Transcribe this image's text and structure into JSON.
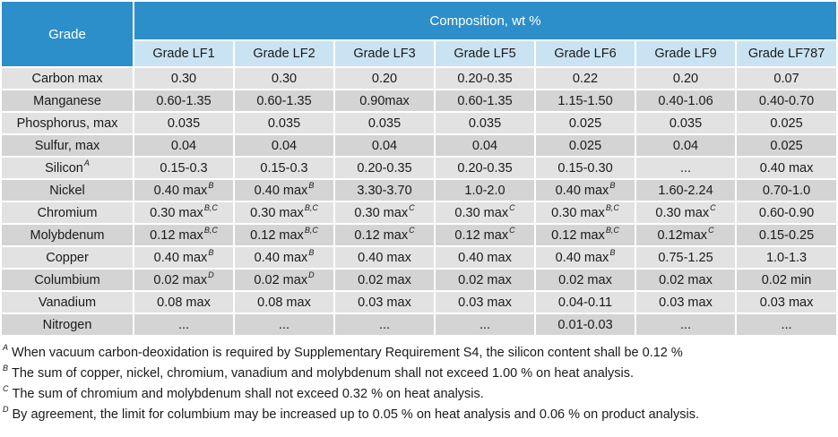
{
  "header": {
    "grade_label": "Grade",
    "composition_label": "Composition, wt %",
    "grades": [
      "Grade LF1",
      "Grade LF2",
      "Grade LF3",
      "Grade LF5",
      "Grade LF6",
      "Grade LF9",
      "Grade LF787"
    ]
  },
  "rows": [
    {
      "element": "Carbon max",
      "sup": "",
      "values": [
        {
          "v": "0.30",
          "s": ""
        },
        {
          "v": "0.30",
          "s": ""
        },
        {
          "v": "0.20",
          "s": ""
        },
        {
          "v": "0.20-0.35",
          "s": ""
        },
        {
          "v": "0.22",
          "s": ""
        },
        {
          "v": "0.20",
          "s": ""
        },
        {
          "v": "0.07",
          "s": ""
        }
      ]
    },
    {
      "element": "Manganese",
      "sup": "",
      "values": [
        {
          "v": "0.60-1.35",
          "s": ""
        },
        {
          "v": "0.60-1.35",
          "s": ""
        },
        {
          "v": "0.90max",
          "s": ""
        },
        {
          "v": "0.60-1.35",
          "s": ""
        },
        {
          "v": "1.15-1.50",
          "s": ""
        },
        {
          "v": "0.40-1.06",
          "s": ""
        },
        {
          "v": "0.40-0.70",
          "s": ""
        }
      ]
    },
    {
      "element": "Phosphorus, max",
      "sup": "",
      "values": [
        {
          "v": "0.035",
          "s": ""
        },
        {
          "v": "0.035",
          "s": ""
        },
        {
          "v": "0.035",
          "s": ""
        },
        {
          "v": "0.035",
          "s": ""
        },
        {
          "v": "0.025",
          "s": ""
        },
        {
          "v": "0.035",
          "s": ""
        },
        {
          "v": "0.025",
          "s": ""
        }
      ]
    },
    {
      "element": "Sulfur, max",
      "sup": "",
      "values": [
        {
          "v": "0.04",
          "s": ""
        },
        {
          "v": "0.04",
          "s": ""
        },
        {
          "v": "0.04",
          "s": ""
        },
        {
          "v": "0.04",
          "s": ""
        },
        {
          "v": "0.025",
          "s": ""
        },
        {
          "v": "0.04",
          "s": ""
        },
        {
          "v": "0.025",
          "s": ""
        }
      ]
    },
    {
      "element": "Silicon",
      "sup": "A",
      "values": [
        {
          "v": "0.15-0.3",
          "s": ""
        },
        {
          "v": "0.15-0.3",
          "s": ""
        },
        {
          "v": "0.20-0.35",
          "s": ""
        },
        {
          "v": "0.20-0.35",
          "s": ""
        },
        {
          "v": "0.15-0.30",
          "s": ""
        },
        {
          "v": "...",
          "s": ""
        },
        {
          "v": "0.40 max",
          "s": ""
        }
      ]
    },
    {
      "element": "Nickel",
      "sup": "",
      "values": [
        {
          "v": "0.40 max",
          "s": "B"
        },
        {
          "v": "0.40 max",
          "s": "B"
        },
        {
          "v": "3.30-3.70",
          "s": ""
        },
        {
          "v": "1.0-2.0",
          "s": ""
        },
        {
          "v": "0.40 max",
          "s": "B"
        },
        {
          "v": "1.60-2.24",
          "s": ""
        },
        {
          "v": "0.70-1.0",
          "s": ""
        }
      ]
    },
    {
      "element": "Chromium",
      "sup": "",
      "values": [
        {
          "v": "0.30 max",
          "s": "B,C"
        },
        {
          "v": "0.30 max",
          "s": "B,C"
        },
        {
          "v": "0.30 max",
          "s": "C"
        },
        {
          "v": "0.30 max",
          "s": "C"
        },
        {
          "v": "0.30 max",
          "s": "B,C"
        },
        {
          "v": "0.30 max",
          "s": "C"
        },
        {
          "v": "0.60-0.90",
          "s": ""
        }
      ]
    },
    {
      "element": "Molybdenum",
      "sup": "",
      "values": [
        {
          "v": "0.12 max",
          "s": "B,C"
        },
        {
          "v": "0.12 max",
          "s": "B,C"
        },
        {
          "v": "0.12 max",
          "s": "C"
        },
        {
          "v": "0.12 max",
          "s": "C"
        },
        {
          "v": "0.12 max",
          "s": "B,C"
        },
        {
          "v": "0.12max",
          "s": "C"
        },
        {
          "v": "0.15-0.25",
          "s": ""
        }
      ]
    },
    {
      "element": "Copper",
      "sup": "",
      "values": [
        {
          "v": "0.40 max",
          "s": "B"
        },
        {
          "v": "0.40 max",
          "s": "B"
        },
        {
          "v": "0.40 max",
          "s": ""
        },
        {
          "v": "0.40 max",
          "s": ""
        },
        {
          "v": "0.40 max",
          "s": "B"
        },
        {
          "v": "0.75-1.25",
          "s": ""
        },
        {
          "v": "1.0-1.3",
          "s": ""
        }
      ]
    },
    {
      "element": "Columbium",
      "sup": "",
      "values": [
        {
          "v": "0.02 max",
          "s": "D"
        },
        {
          "v": "0.02 max",
          "s": "D"
        },
        {
          "v": "0.02 max",
          "s": ""
        },
        {
          "v": "0.02 max",
          "s": ""
        },
        {
          "v": "0.02 max",
          "s": ""
        },
        {
          "v": "0.02 max",
          "s": ""
        },
        {
          "v": "0.02 min",
          "s": ""
        }
      ]
    },
    {
      "element": "Vanadium",
      "sup": "",
      "values": [
        {
          "v": "0.08 max",
          "s": ""
        },
        {
          "v": "0.08 max",
          "s": ""
        },
        {
          "v": "0.03 max",
          "s": ""
        },
        {
          "v": "0.03 max",
          "s": ""
        },
        {
          "v": "0.04-0.11",
          "s": ""
        },
        {
          "v": "0.03 max",
          "s": ""
        },
        {
          "v": "0.03 max",
          "s": ""
        }
      ]
    },
    {
      "element": "Nitrogen",
      "sup": "",
      "values": [
        {
          "v": "...",
          "s": ""
        },
        {
          "v": "...",
          "s": ""
        },
        {
          "v": "...",
          "s": ""
        },
        {
          "v": "...",
          "s": ""
        },
        {
          "v": "0.01-0.03",
          "s": ""
        },
        {
          "v": "...",
          "s": ""
        },
        {
          "v": "...",
          "s": ""
        }
      ]
    }
  ],
  "notes": [
    {
      "mark": "A",
      "text": "When vacuum carbon-deoxidation is required by Supplementary Requirement S4, the silicon content shall be 0.12 %"
    },
    {
      "mark": "B",
      "text": "The sum of copper, nickel, chromium, vanadium and molybdenum shall not exceed 1.00 % on heat analysis."
    },
    {
      "mark": "C",
      "text": "The sum of chromium and molybdenum shall not exceed 0.32 % on heat analysis."
    },
    {
      "mark": "D",
      "text": "By agreement, the limit for columbium may be increased up to 0.05 % on heat analysis and 0.06 % on product analysis."
    }
  ],
  "colors": {
    "header_bg": "#2c8fc9",
    "subheader_bg": "#c9e3f3",
    "row_light": "#e2e2e2",
    "row_dark": "#d4d4d4"
  }
}
